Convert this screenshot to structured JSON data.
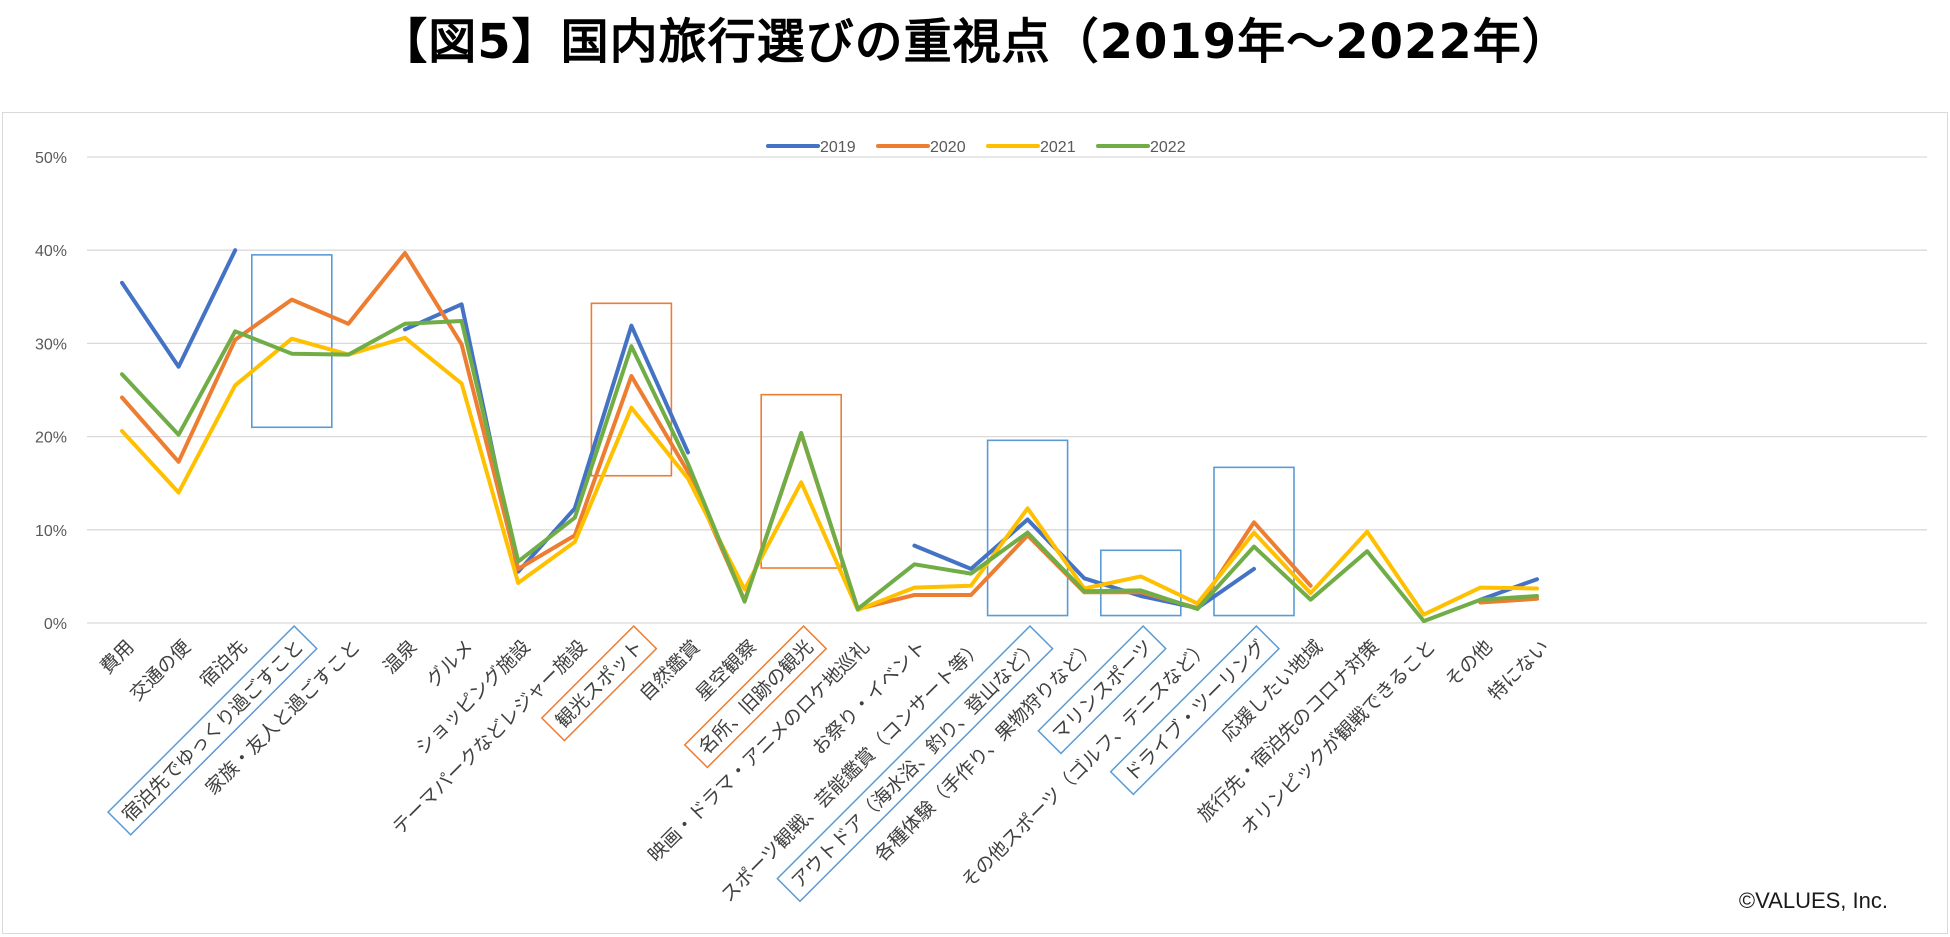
{
  "title": "【図5】国内旅行選びの重視点（2019年～2022年）",
  "copyright": "©VALUES, Inc.",
  "chart_data": {
    "type": "line",
    "title": "【図5】国内旅行選びの重視点（2019年～2022年）",
    "ylim": [
      0,
      50
    ],
    "yticks": [
      "0%",
      "10%",
      "20%",
      "30%",
      "40%",
      "50%"
    ],
    "grid": true,
    "legend_position": "top-center",
    "categories": [
      "費用",
      "交通の便",
      "宿泊先",
      "宿泊先でゆっくり過ごすこと",
      "家族・友人と過ごすこと",
      "温泉",
      "グルメ",
      "ショッピング施設",
      "テーマパークなどレジャー施設",
      "観光スポット",
      "自然鑑賞",
      "星空観察",
      "名所、旧跡の観光",
      "映画・ドラマ・アニメのロケ地巡礼",
      "お祭り・イベント",
      "スポーツ観戦、芸能鑑賞（コンサート等）",
      "アウトドア（海水浴、釣り、登山など）",
      "各種体験（手作り、果物狩りなど）",
      "マリンスポーツ",
      "その他スポーツ（ゴルフ、テニスなど）",
      "ドライブ・ツーリング",
      "応援したい地域",
      "旅行先・宿泊先のコロナ対策",
      "オリンピックが観戦できること",
      "その他",
      "特にない"
    ],
    "series": [
      {
        "name": "2019",
        "color": "#4472c4",
        "values": [
          36.5,
          27.5,
          40,
          null,
          null,
          31.5,
          34.2,
          5.5,
          12.3,
          31.9,
          18.3,
          null,
          null,
          null,
          8.3,
          5.8,
          11.1,
          4.8,
          2.9,
          1.6,
          5.8,
          null,
          null,
          null,
          2.5,
          4.7
        ]
      },
      {
        "name": "2020",
        "color": "#ed7d31",
        "values": [
          24.2,
          17.3,
          30.4,
          34.7,
          32.1,
          39.7,
          29.9,
          5.8,
          9.4,
          26.5,
          16.2,
          2.4,
          20.3,
          1.5,
          3.0,
          3.0,
          9.4,
          3.3,
          3.3,
          1.6,
          10.8,
          4.0,
          null,
          null,
          2.2,
          2.6
        ]
      },
      {
        "name": "2021",
        "color": "#ffc000",
        "values": [
          20.6,
          14.0,
          25.5,
          30.5,
          28.8,
          30.6,
          25.7,
          4.3,
          8.7,
          23.1,
          15.5,
          3.6,
          15.1,
          1.4,
          3.8,
          4.0,
          12.3,
          3.7,
          5.0,
          2.1,
          9.7,
          3.2,
          9.8,
          0.9,
          3.8,
          3.7
        ]
      },
      {
        "name": "2022",
        "color": "#70ad47",
        "values": [
          26.7,
          20.2,
          31.3,
          28.9,
          28.8,
          32.1,
          32.4,
          6.6,
          11.3,
          29.7,
          17.1,
          2.3,
          20.4,
          1.5,
          6.3,
          5.3,
          9.7,
          3.4,
          3.5,
          1.5,
          8.2,
          2.5,
          7.7,
          0.2,
          2.5,
          2.9
        ]
      }
    ],
    "highlight_boxes": [
      {
        "category": "宿泊先でゆっくり過ごすこと",
        "color": "#5b9bd5",
        "range": [
          21,
          39.5
        ]
      },
      {
        "category": "観光スポット",
        "color": "#ed7d31",
        "range": [
          15.8,
          34.3
        ]
      },
      {
        "category": "名所、旧跡の観光",
        "color": "#ed7d31",
        "range": [
          5.9,
          24.5
        ]
      },
      {
        "category": "アウトドア（海水浴、釣り、登山など）",
        "color": "#5b9bd5",
        "range": [
          0.8,
          19.6
        ]
      },
      {
        "category": "マリンスポーツ",
        "color": "#5b9bd5",
        "range": [
          0.8,
          7.8
        ]
      },
      {
        "category": "ドライブ・ツーリング",
        "color": "#5b9bd5",
        "range": [
          0.8,
          16.7
        ]
      }
    ],
    "boxed_labels": [
      {
        "category": "宿泊先でゆっくり過ごすこと",
        "color": "#5b9bd5"
      },
      {
        "category": "観光スポット",
        "color": "#ed7d31"
      },
      {
        "category": "名所、旧跡の観光",
        "color": "#ed7d31"
      },
      {
        "category": "アウトドア（海水浴、釣り、登山など）",
        "color": "#5b9bd5"
      },
      {
        "category": "マリンスポーツ",
        "color": "#5b9bd5"
      },
      {
        "category": "ドライブ・ツーリング",
        "color": "#5b9bd5"
      }
    ]
  }
}
